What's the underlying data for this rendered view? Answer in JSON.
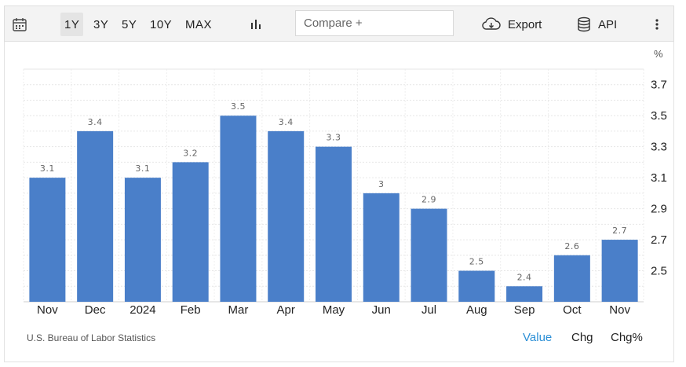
{
  "toolbar": {
    "ranges": [
      "1Y",
      "3Y",
      "5Y",
      "10Y",
      "MAX"
    ],
    "active_range": "1Y",
    "compare_placeholder": "Compare +",
    "export_label": "Export",
    "api_label": "API",
    "icons": [
      "calendar-icon",
      "bar-chart-icon",
      "cloud-download-icon",
      "database-icon",
      "more-vertical-icon"
    ]
  },
  "chart_data": {
    "type": "bar",
    "categories": [
      "Nov",
      "Dec",
      "2024",
      "Feb",
      "Mar",
      "Apr",
      "May",
      "Jun",
      "Jul",
      "Aug",
      "Sep",
      "Oct",
      "Nov"
    ],
    "values": [
      3.1,
      3.4,
      3.1,
      3.2,
      3.5,
      3.4,
      3.3,
      3,
      2.9,
      2.5,
      2.4,
      2.6,
      2.7
    ],
    "value_labels": [
      "3.1",
      "3.4",
      "3.1",
      "3.2",
      "3.5",
      "3.4",
      "3.3",
      "3",
      "2.9",
      "2.5",
      "2.4",
      "2.6",
      "2.7"
    ],
    "yticks": [
      "2.5",
      "2.7",
      "2.9",
      "3.1",
      "3.3",
      "3.5",
      "3.7"
    ],
    "ylim": [
      2.3,
      3.8
    ],
    "unit": "%",
    "grid": true,
    "bar_color": "#4a7fc9"
  },
  "footer": {
    "source": "U.S. Bureau of Labor Statistics",
    "toggles": [
      "Value",
      "Chg",
      "Chg%"
    ],
    "active_toggle": "Value",
    "active_color": "#2b8fd6"
  }
}
